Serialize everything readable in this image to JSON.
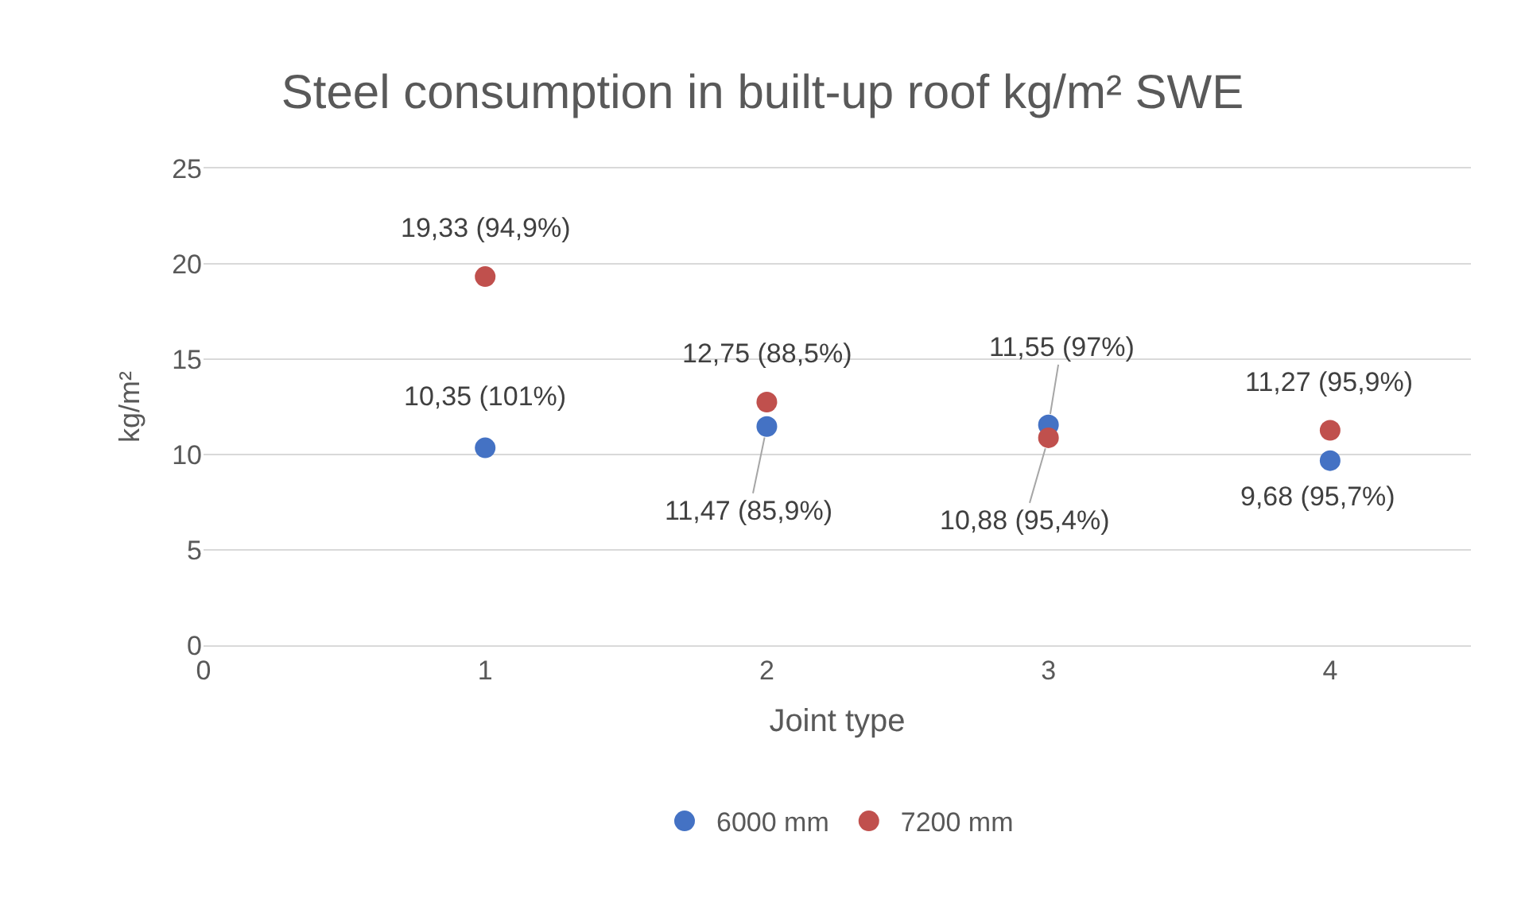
{
  "chart_data": {
    "type": "scatter",
    "title": "Steel consumption in built-up roof kg/m² SWE",
    "xlabel": "Joint type",
    "ylabel": "kg/m²",
    "x": [
      1,
      2,
      3,
      4
    ],
    "series": [
      {
        "name": "6000 mm",
        "color": "#4472c4",
        "values": [
          10.35,
          11.47,
          11.55,
          9.68
        ],
        "value_labels": [
          "10,35 (101%)",
          "11,47 (85,9%)",
          "11,55 (97%)",
          "9,68 (95,7%)"
        ]
      },
      {
        "name": "7200 mm",
        "color": "#c0504d",
        "values": [
          19.33,
          12.75,
          10.88,
          11.27
        ],
        "value_labels": [
          "19,33 (94,9%)",
          "12,75 (88,5%)",
          "10,88 (95,4%)",
          "11,27 (95,9%)"
        ]
      }
    ],
    "xlim": [
      0,
      4.5
    ],
    "xticks": [
      0,
      1,
      2,
      3,
      4
    ],
    "ylim": [
      0,
      25
    ],
    "yticks": [
      0,
      5,
      10,
      15,
      20,
      25
    ],
    "grid": "y",
    "legend": "bottom",
    "marker": "circle"
  }
}
